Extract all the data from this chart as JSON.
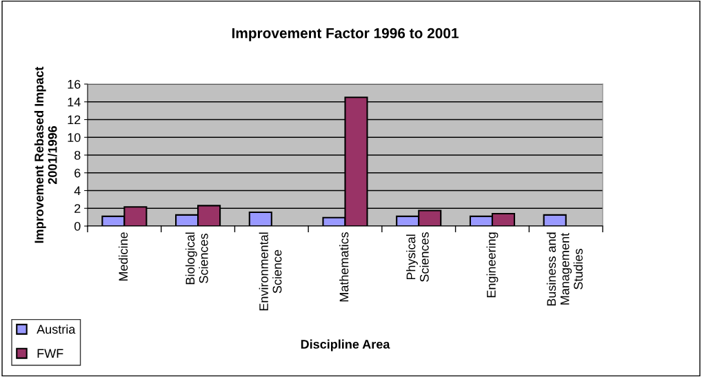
{
  "chart_data": {
    "type": "bar",
    "title": "Improvement Factor 1996 to 2001",
    "xlabel": "Discipline Area",
    "ylabel": "Improvement Rebased Impact\n2001/1996",
    "categories": [
      "Medicine",
      "Biological\nSciences",
      "Environmental\nScience",
      "Mathematics",
      "Physical\nSciences",
      "Engineering",
      "Business and\nManagement\nStudies"
    ],
    "series": [
      {
        "name": "Austria",
        "color": "#9999ff",
        "values": [
          1.1,
          1.25,
          1.55,
          0.95,
          1.1,
          1.1,
          1.25
        ]
      },
      {
        "name": "FWF",
        "color": "#993366",
        "values": [
          2.15,
          2.3,
          null,
          14.5,
          1.75,
          1.4,
          null
        ]
      }
    ],
    "ylim": [
      0,
      16
    ],
    "yticks": [
      0,
      2,
      4,
      6,
      8,
      10,
      12,
      14,
      16
    ],
    "grid": "y",
    "legend": "bottom left"
  }
}
